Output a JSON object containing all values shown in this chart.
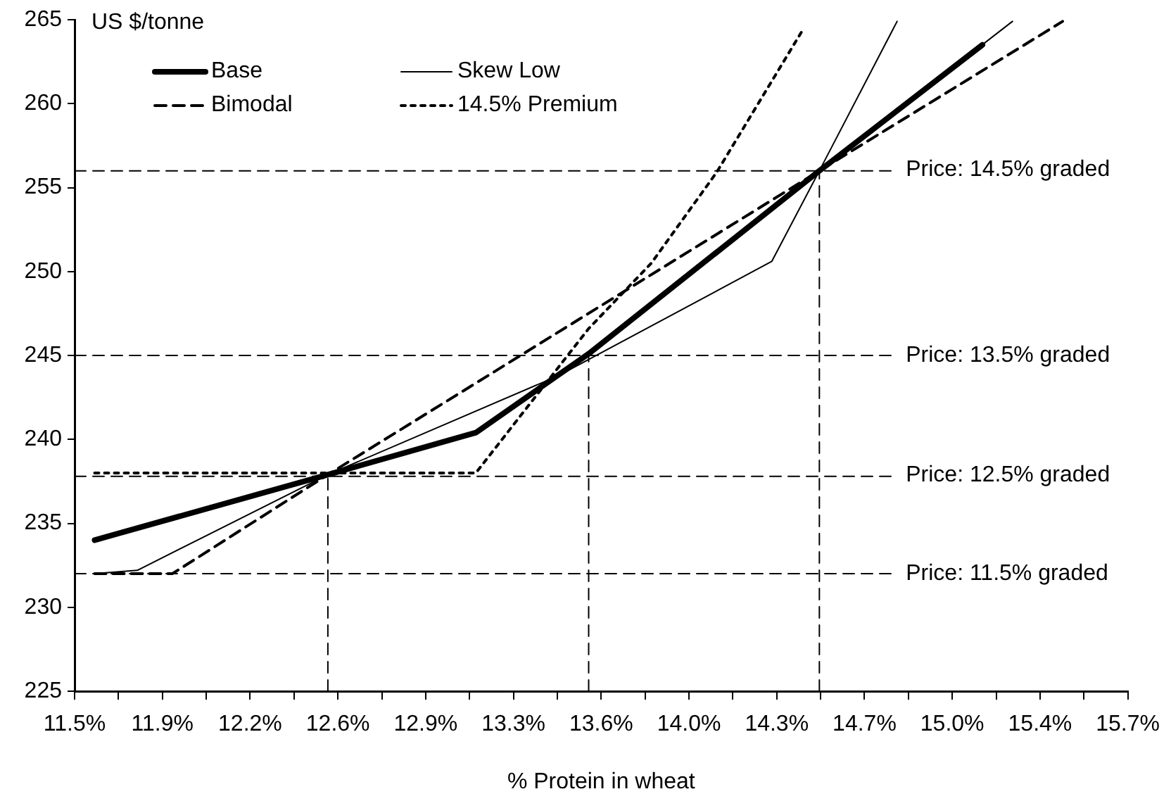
{
  "chart_data": {
    "type": "line",
    "xlabel": "% Protein in wheat",
    "ylabel": "US $/tonne",
    "xlim": [
      11.5,
      15.7
    ],
    "ylim": [
      225,
      265
    ],
    "xticks": [
      {
        "value": 11.5,
        "label": "11.5%"
      },
      {
        "value": 11.675,
        "label": null
      },
      {
        "value": 11.85,
        "label": "11.9%"
      },
      {
        "value": 12.025,
        "label": null
      },
      {
        "value": 12.2,
        "label": "12.2%"
      },
      {
        "value": 12.375,
        "label": null
      },
      {
        "value": 12.55,
        "label": "12.6%"
      },
      {
        "value": 12.725,
        "label": null
      },
      {
        "value": 12.9,
        "label": "12.9%"
      },
      {
        "value": 13.075,
        "label": null
      },
      {
        "value": 13.25,
        "label": "13.3%"
      },
      {
        "value": 13.425,
        "label": null
      },
      {
        "value": 13.6,
        "label": "13.6%"
      },
      {
        "value": 13.775,
        "label": null
      },
      {
        "value": 13.95,
        "label": "14.0%"
      },
      {
        "value": 14.125,
        "label": null
      },
      {
        "value": 14.3,
        "label": "14.3%"
      },
      {
        "value": 14.475,
        "label": null
      },
      {
        "value": 14.65,
        "label": "14.7%"
      },
      {
        "value": 14.825,
        "label": null
      },
      {
        "value": 15.0,
        "label": "15.0%"
      },
      {
        "value": 15.175,
        "label": null
      },
      {
        "value": 15.35,
        "label": "15.4%"
      },
      {
        "value": 15.525,
        "label": null
      },
      {
        "value": 15.7,
        "label": "15.7%"
      }
    ],
    "yticks": [
      225,
      230,
      235,
      240,
      245,
      250,
      255,
      260,
      265
    ],
    "grid": false,
    "legend": "top left",
    "marker": "none",
    "series": [
      {
        "name": "Base",
        "color": "#000000",
        "line_style": "solid",
        "x": [
          11.58,
          12.51,
          13.1,
          13.55,
          14.47,
          15.12
        ],
        "values": [
          234.0,
          237.9,
          240.4,
          245.1,
          256.0,
          263.5
        ]
      },
      {
        "name": "Skew Low",
        "color": "#000000",
        "line_style": "solid",
        "x": [
          11.58,
          11.75,
          12.51,
          13.43,
          14.28,
          14.47,
          14.78
        ],
        "values": [
          232.0,
          232.2,
          237.9,
          243.8,
          250.6,
          256.0,
          264.9
        ]
      },
      {
        "name": "Bimodal",
        "color": "#000000",
        "line_style": "dashed",
        "x": [
          11.58,
          11.89,
          12.51,
          13.43,
          14.47,
          15.44
        ],
        "values": [
          232.0,
          232.0,
          237.9,
          246.4,
          256.0,
          264.9
        ]
      },
      {
        "name": "14.5% Premium",
        "color": "#000000",
        "line_style": "dotted",
        "x": [
          11.58,
          13.1,
          13.55,
          13.8,
          14.06,
          14.4
        ],
        "values": [
          238.0,
          238.0,
          246.6,
          250.5,
          255.9,
          264.3
        ]
      },
      {
        "color": "#000000",
        "line_style": "solid",
        "x": [
          14.47,
          15.24
        ],
        "values": [
          256.0,
          264.9
        ]
      },
      {
        "color": "#000000",
        "line_style": "dashed",
        "x": [
          12.51,
          12.51
        ],
        "values": [
          225,
          237.8
        ]
      },
      {
        "color": "#000000",
        "line_style": "dashed",
        "x": [
          13.55,
          13.55
        ],
        "values": [
          225,
          245.0
        ]
      },
      {
        "color": "#000000",
        "line_style": "dashed",
        "x": [
          14.47,
          14.47
        ],
        "values": [
          225,
          256.0
        ]
      },
      {
        "color": "#000000",
        "line_style": "dashed",
        "x": [
          11.5,
          14.77
        ],
        "values": [
          256.0,
          256.0
        ]
      },
      {
        "color": "#000000",
        "line_style": "dashed",
        "x": [
          11.5,
          14.77
        ],
        "values": [
          245.0,
          245.0
        ]
      },
      {
        "color": "#000000",
        "line_style": "dashed",
        "x": [
          11.5,
          14.77
        ],
        "values": [
          237.8,
          237.8
        ]
      },
      {
        "color": "#000000",
        "line_style": "dashed",
        "x": [
          11.5,
          14.77
        ],
        "values": [
          232.0,
          232.0
        ]
      }
    ],
    "annotations": [
      "Price: 14.5% graded",
      "Price: 13.5% graded",
      "Price: 12.5% graded",
      "Price: 11.5% graded"
    ]
  }
}
